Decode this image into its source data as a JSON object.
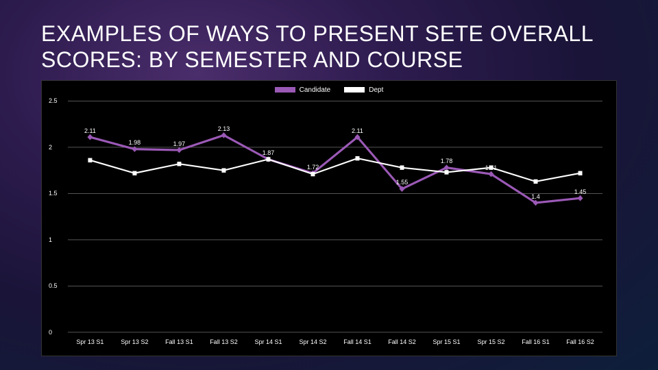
{
  "title": "EXAMPLES OF WAYS TO PRESENT SETE OVERALL SCORES: BY SEMESTER AND COURSE",
  "legend": {
    "series1_label": "Candidate",
    "series2_label": "Dept"
  },
  "chart": {
    "type": "line",
    "background_color": "#000000",
    "grid_color": "#888888",
    "text_color": "#ffffff",
    "ylim": [
      0,
      2.5
    ],
    "ytick_step": 0.5,
    "yticks": [
      "0",
      "0.5",
      "1",
      "1.5",
      "2",
      "2.5"
    ],
    "categories": [
      "Spr 13 S1",
      "Spr 13 S2",
      "Fall 13 S1",
      "Fall 13 S2",
      "Spr 14 S1",
      "Spr 14 S2",
      "Fall 14 S1",
      "Fall 14 S2",
      "Spr 15 S1",
      "Spr 15 S2",
      "Fall 16 S1",
      "Fall 16 S2"
    ],
    "series": [
      {
        "name": "Candidate",
        "color": "#9b59b6",
        "line_width": 3,
        "marker": "diamond",
        "values": [
          2.11,
          1.98,
          1.97,
          2.13,
          1.87,
          1.72,
          2.11,
          1.55,
          1.78,
          1.71,
          1.4,
          1.45
        ]
      },
      {
        "name": "Dept",
        "color": "#ffffff",
        "line_width": 2,
        "marker": "square",
        "values": [
          1.86,
          1.72,
          1.82,
          1.75,
          1.87,
          1.71,
          1.88,
          1.78,
          1.73,
          1.78,
          1.63,
          1.72
        ]
      }
    ],
    "label_fontsize": 9,
    "axis_fontsize": 9
  }
}
